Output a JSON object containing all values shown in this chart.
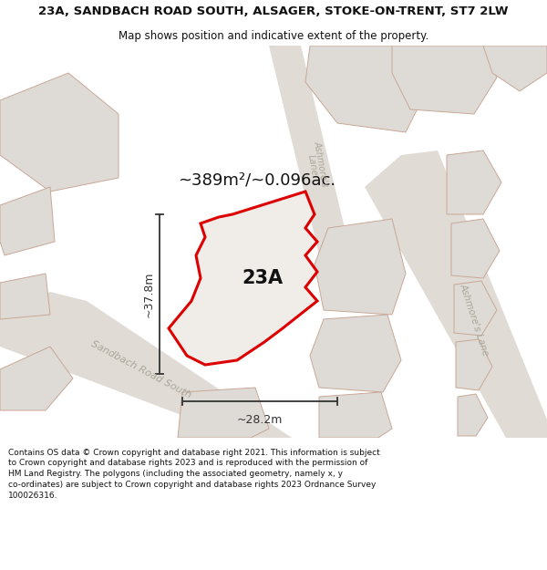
{
  "title": "23A, SANDBACH ROAD SOUTH, ALSAGER, STOKE-ON-TRENT, ST7 2LW",
  "subtitle": "Map shows position and indicative extent of the property.",
  "area_text": "~389m²/~0.096ac.",
  "label_23A": "23A",
  "dim_width": "~28.2m",
  "dim_height": "~37.8m",
  "footer": "Contains OS data © Crown copyright and database right 2021. This information is subject to Crown copyright and database rights 2023 and is reproduced with the permission of HM Land Registry. The polygons (including the associated geometry, namely x, y co-ordinates) are subject to Crown copyright and database rights 2023 Ordnance Survey 100026316.",
  "map_bg": "#f2efeb",
  "property_fill": "#f0ece8",
  "property_edge": "#dd0000",
  "building_fill": "#dedad5",
  "building_edge": "#c8a898",
  "road_fill": "#e0dbd5",
  "road_label_color": "#aaa89a",
  "dim_line_color": "#333333",
  "area_text_color": "#111111",
  "label_color": "#111111",
  "title_color": "#111111",
  "footer_color": "#111111",
  "title_fontsize": 9.5,
  "subtitle_fontsize": 8.5,
  "area_fontsize": 13,
  "label_fontsize": 15,
  "dim_fontsize": 9,
  "road_label_fontsize": 8,
  "footer_fontsize": 6.5
}
